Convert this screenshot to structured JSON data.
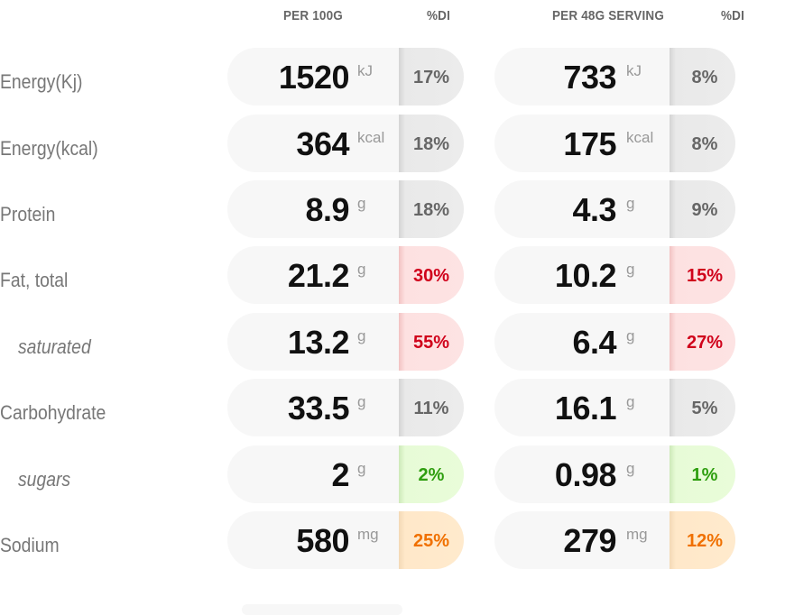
{
  "headers": {
    "per_100g": "PER 100G",
    "di_1": "%DI",
    "per_serving": "PER 48G SERVING",
    "di_2": "%DI"
  },
  "colors": {
    "neutral_pct": "#666666",
    "red_pct": "#d0021b",
    "green_pct": "#2e9e0f",
    "orange_pct": "#f07000"
  },
  "rows": [
    {
      "label": "Energy(Kj)",
      "v100": "1520",
      "u100": "kJ",
      "p100": "17%",
      "c100": "neutral",
      "vserv": "733",
      "userv": "kJ",
      "pserv": "8%",
      "cserv": "neutral"
    },
    {
      "label": "Energy(kcal)",
      "v100": "364",
      "u100": "kcal",
      "p100": "18%",
      "c100": "neutral",
      "vserv": "175",
      "userv": "kcal",
      "pserv": "8%",
      "cserv": "neutral"
    },
    {
      "label": "Protein",
      "v100": "8.9",
      "u100": "g",
      "p100": "18%",
      "c100": "neutral",
      "vserv": "4.3",
      "userv": "g",
      "pserv": "9%",
      "cserv": "neutral"
    },
    {
      "label": "Fat, total",
      "v100": "21.2",
      "u100": "g",
      "p100": "30%",
      "c100": "red",
      "vserv": "10.2",
      "userv": "g",
      "pserv": "15%",
      "cserv": "red"
    },
    {
      "label": "saturated",
      "v100": "13.2",
      "u100": "g",
      "p100": "55%",
      "c100": "red",
      "vserv": "6.4",
      "userv": "g",
      "pserv": "27%",
      "cserv": "red"
    },
    {
      "label": "Carbohydrate",
      "v100": "33.5",
      "u100": "g",
      "p100": "11%",
      "c100": "neutral",
      "vserv": "16.1",
      "userv": "g",
      "pserv": "5%",
      "cserv": "neutral"
    },
    {
      "label": "sugars",
      "v100": "2",
      "u100": "g",
      "p100": "2%",
      "c100": "green",
      "vserv": "0.98",
      "userv": "g",
      "pserv": "1%",
      "cserv": "green"
    },
    {
      "label": "Sodium",
      "v100": "580",
      "u100": "mg",
      "p100": "25%",
      "c100": "orange",
      "vserv": "279",
      "userv": "mg",
      "pserv": "12%",
      "cserv": "orange"
    }
  ]
}
